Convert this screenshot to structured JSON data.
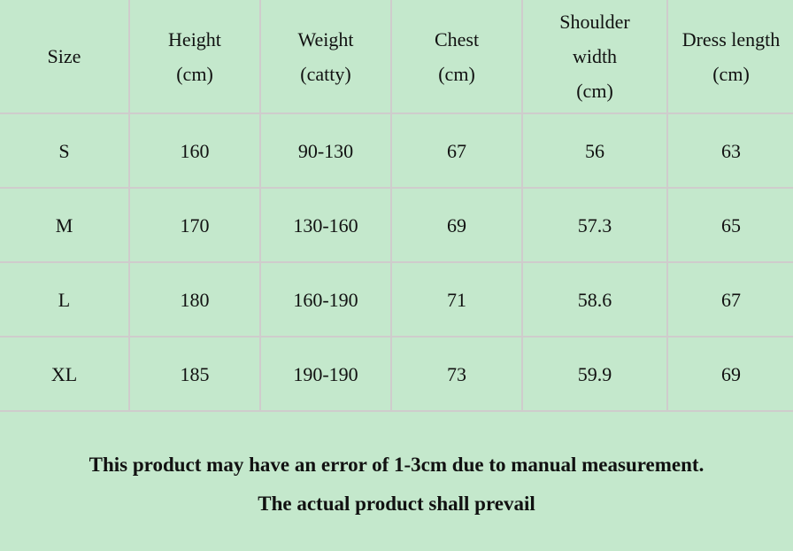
{
  "table": {
    "headers": [
      "Size",
      "Height\n(cm)",
      "Weight\n(catty)",
      "Chest\n(cm)",
      "Shoulder\nwidth\n(cm)",
      "Dress length\n(cm)"
    ],
    "rows": [
      [
        "S",
        "160",
        "90-130",
        "67",
        "56",
        "63"
      ],
      [
        "M",
        "170",
        "130-160",
        "69",
        "57.3",
        "65"
      ],
      [
        "L",
        "180",
        "160-190",
        "71",
        "58.6",
        "67"
      ],
      [
        "XL",
        "185",
        "190-190",
        "73",
        "59.9",
        "69"
      ]
    ]
  },
  "note": {
    "line1": "This product may have an error of 1-3cm due to manual measurement.",
    "line2": "The actual product shall prevail"
  },
  "colors": {
    "background": "#c4e8cc",
    "grid": "#cfcccc",
    "text": "#111111"
  }
}
